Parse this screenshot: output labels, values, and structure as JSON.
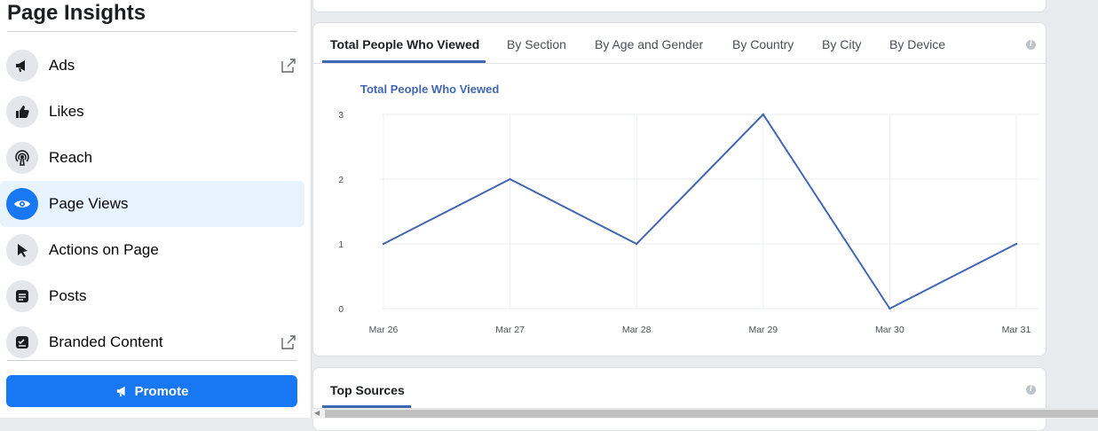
{
  "sidebar": {
    "title": "Page Insights",
    "items": [
      {
        "label": "Ads",
        "icon": "megaphone-icon",
        "external": true
      },
      {
        "label": "Likes",
        "icon": "thumbs-up-icon",
        "external": false
      },
      {
        "label": "Reach",
        "icon": "broadcast-icon",
        "external": false
      },
      {
        "label": "Page Views",
        "icon": "eye-icon",
        "external": false,
        "active": true
      },
      {
        "label": "Actions on Page",
        "icon": "cursor-icon",
        "external": false
      },
      {
        "label": "Posts",
        "icon": "post-icon",
        "external": false
      },
      {
        "label": "Branded Content",
        "icon": "branded-content-icon",
        "external": true
      }
    ],
    "promote_label": "Promote"
  },
  "tabs": {
    "items": [
      "Total People Who Viewed",
      "By Section",
      "By Age and Gender",
      "By Country",
      "By City",
      "By Device"
    ],
    "active": "Total People Who Viewed"
  },
  "chart_data": {
    "type": "line",
    "title": "Total People Who Viewed",
    "x": [
      "Mar 26",
      "Mar 27",
      "Mar 28",
      "Mar 29",
      "Mar 30",
      "Mar 31"
    ],
    "series": [
      {
        "values": [
          1,
          2,
          1,
          3,
          0,
          1
        ]
      }
    ],
    "ylim": [
      0,
      3
    ],
    "yticks": [
      0,
      1,
      2,
      3
    ],
    "grid": true,
    "color": "#4267b2"
  },
  "sources": {
    "tab_label": "Top Sources"
  },
  "colors": {
    "accent": "#1877f2",
    "chart_blue": "#4267b2"
  }
}
